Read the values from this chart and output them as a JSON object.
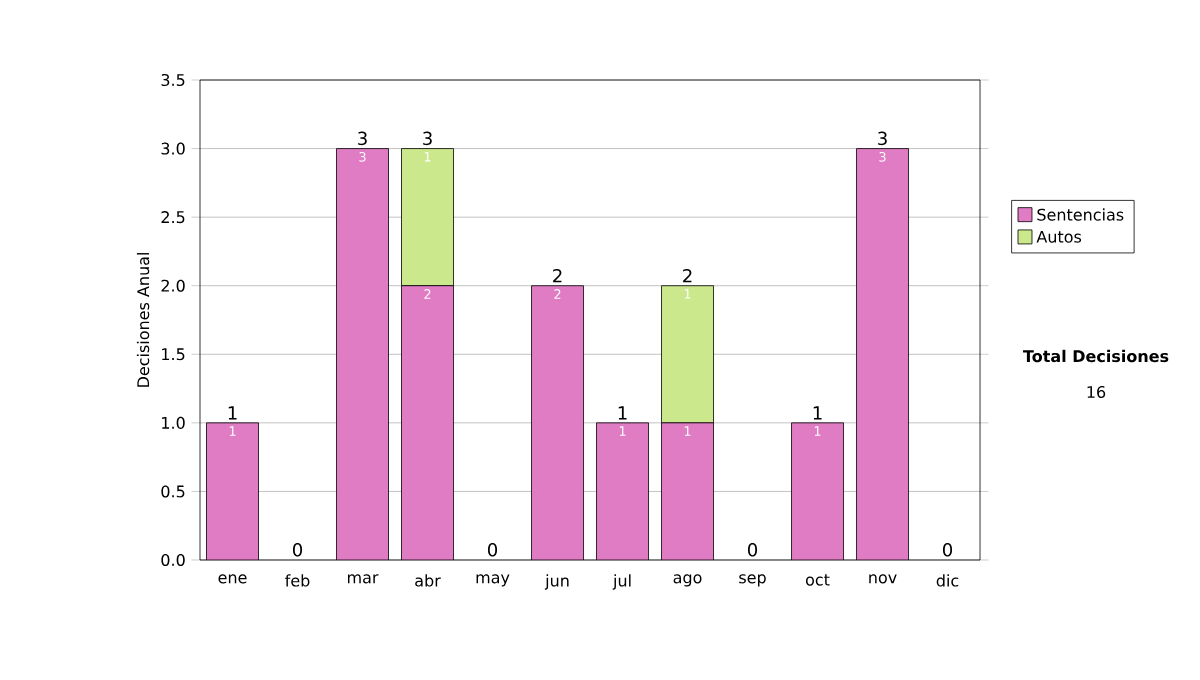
{
  "chart_data": {
    "type": "bar",
    "stacked": true,
    "ylabel": "Decisiones Anual",
    "categories": [
      "ene",
      "feb",
      "mar",
      "abr",
      "may",
      "jun",
      "jul",
      "ago",
      "sep",
      "oct",
      "nov",
      "dic"
    ],
    "series": [
      {
        "name": "Sentencias",
        "color": "#e07cc4",
        "values": [
          1,
          0,
          3,
          2,
          0,
          2,
          1,
          1,
          0,
          1,
          3,
          0
        ],
        "value_labels": [
          "1",
          null,
          "3",
          "2",
          null,
          "2",
          "1",
          "1",
          null,
          "1",
          "3",
          null
        ]
      },
      {
        "name": "Autos",
        "color": "#cce88c",
        "values": [
          0,
          0,
          0,
          1,
          0,
          0,
          0,
          1,
          0,
          0,
          0,
          0
        ],
        "value_labels": [
          null,
          null,
          null,
          "1",
          null,
          null,
          null,
          "1",
          null,
          null,
          null,
          null
        ]
      }
    ],
    "totals": [
      "1",
      "0",
      "3",
      "3",
      "0",
      "2",
      "1",
      "2",
      "0",
      "1",
      "3",
      "0"
    ],
    "ylim": [
      0,
      3.5
    ],
    "yticks": [
      {
        "value": 0,
        "label": "0.0"
      },
      {
        "value": 0.5,
        "label": "0.5"
      },
      {
        "value": 1,
        "label": "1.0"
      },
      {
        "value": 1.5,
        "label": "1.5"
      },
      {
        "value": 2,
        "label": "2.0"
      },
      {
        "value": 2.5,
        "label": "2.5"
      },
      {
        "value": 3,
        "label": "3.0"
      },
      {
        "value": 3.5,
        "label": "3.5"
      }
    ],
    "grid": "y",
    "legend": "right",
    "annotations": [
      "Total Decisiones",
      "16"
    ]
  }
}
